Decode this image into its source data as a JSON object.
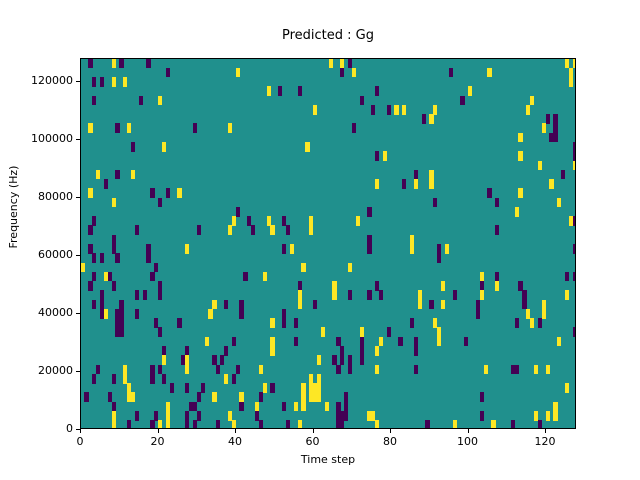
{
  "chart_data": {
    "type": "heatmap",
    "title": "Predicted : Gg",
    "xlabel": "Time step",
    "ylabel": "Frequency (Hz)",
    "x_range": [
      0,
      128
    ],
    "y_range": [
      0,
      128000
    ],
    "x_ticks": [
      0,
      20,
      40,
      60,
      80,
      100,
      120
    ],
    "y_ticks": [
      0,
      20000,
      40000,
      60000,
      80000,
      100000,
      120000
    ],
    "grid_cols": 128,
    "grid_rows": 40,
    "legend": "none",
    "colormap_name": "viridis",
    "colors": {
      "background": "#20908d",
      "low": "#440154",
      "high": "#fde725",
      "frame": "#000000"
    },
    "value_legend": "cells listed as [time_step, freq_row(0=bottom), v] with v 0=low(dark) 1=high(yellow); unlisted cells are mid(teal)",
    "cells": [
      [
        2,
        39,
        0
      ],
      [
        8,
        39,
        1
      ],
      [
        10,
        39,
        0
      ],
      [
        17,
        39,
        0
      ],
      [
        64,
        39,
        1
      ],
      [
        67,
        39,
        1
      ],
      [
        69,
        39,
        0
      ],
      [
        125,
        39,
        1
      ],
      [
        127,
        39,
        1
      ],
      [
        22,
        38,
        0
      ],
      [
        40,
        38,
        1
      ],
      [
        67,
        38,
        0
      ],
      [
        70,
        38,
        1
      ],
      [
        95,
        38,
        0
      ],
      [
        105,
        38,
        1
      ],
      [
        126,
        38,
        1
      ],
      [
        3,
        37,
        0
      ],
      [
        5,
        37,
        0
      ],
      [
        8,
        37,
        1
      ],
      [
        11,
        37,
        1
      ],
      [
        126,
        37,
        1
      ],
      [
        48,
        36,
        1
      ],
      [
        51,
        36,
        0
      ],
      [
        56,
        36,
        0
      ],
      [
        76,
        36,
        0
      ],
      [
        100,
        36,
        1
      ],
      [
        3,
        35,
        0
      ],
      [
        15,
        35,
        0
      ],
      [
        20,
        35,
        1
      ],
      [
        72,
        35,
        0
      ],
      [
        98,
        35,
        0
      ],
      [
        116,
        35,
        1
      ],
      [
        60,
        34,
        1
      ],
      [
        75,
        34,
        0
      ],
      [
        79,
        34,
        0
      ],
      [
        81,
        34,
        1
      ],
      [
        83,
        34,
        1
      ],
      [
        91,
        34,
        1
      ],
      [
        115,
        34,
        1
      ],
      [
        88,
        33,
        0
      ],
      [
        90,
        33,
        1
      ],
      [
        120,
        33,
        0
      ],
      [
        122,
        33,
        0
      ],
      [
        2,
        32,
        1
      ],
      [
        9,
        32,
        0
      ],
      [
        12,
        32,
        1
      ],
      [
        29,
        32,
        0
      ],
      [
        38,
        32,
        1
      ],
      [
        70,
        32,
        0
      ],
      [
        119,
        32,
        1
      ],
      [
        122,
        32,
        0
      ],
      [
        113,
        31,
        1
      ],
      [
        121,
        31,
        0
      ],
      [
        122,
        31,
        0
      ],
      [
        13,
        30,
        0
      ],
      [
        21,
        30,
        1
      ],
      [
        58,
        30,
        1
      ],
      [
        127,
        30,
        0
      ],
      [
        76,
        29,
        0
      ],
      [
        78,
        29,
        1
      ],
      [
        113,
        29,
        1
      ],
      [
        127,
        29,
        0
      ],
      [
        118,
        28,
        1
      ],
      [
        127,
        28,
        1
      ],
      [
        4,
        27,
        1
      ],
      [
        9,
        27,
        0
      ],
      [
        13,
        27,
        1
      ],
      [
        86,
        27,
        0
      ],
      [
        90,
        27,
        1
      ],
      [
        124,
        27,
        0
      ],
      [
        6,
        26,
        0
      ],
      [
        76,
        26,
        1
      ],
      [
        83,
        26,
        0
      ],
      [
        86,
        26,
        1
      ],
      [
        90,
        26,
        1
      ],
      [
        121,
        26,
        1
      ],
      [
        2,
        25,
        1
      ],
      [
        18,
        25,
        0
      ],
      [
        22,
        25,
        0
      ],
      [
        25,
        25,
        1
      ],
      [
        105,
        25,
        0
      ],
      [
        113,
        25,
        1
      ],
      [
        8,
        24,
        1
      ],
      [
        20,
        24,
        0
      ],
      [
        91,
        24,
        0
      ],
      [
        107,
        24,
        0
      ],
      [
        123,
        24,
        1
      ],
      [
        40,
        23,
        0
      ],
      [
        74,
        23,
        0
      ],
      [
        112,
        23,
        1
      ],
      [
        3,
        22,
        0
      ],
      [
        39,
        22,
        1
      ],
      [
        43,
        22,
        0
      ],
      [
        48,
        22,
        1
      ],
      [
        52,
        22,
        0
      ],
      [
        59,
        22,
        1
      ],
      [
        71,
        22,
        1
      ],
      [
        126,
        22,
        1
      ],
      [
        127,
        22,
        0
      ],
      [
        2,
        21,
        0
      ],
      [
        14,
        21,
        0
      ],
      [
        30,
        21,
        0
      ],
      [
        38,
        21,
        1
      ],
      [
        44,
        21,
        0
      ],
      [
        49,
        21,
        1
      ],
      [
        53,
        21,
        0
      ],
      [
        59,
        21,
        1
      ],
      [
        107,
        21,
        0
      ],
      [
        8,
        20,
        0
      ],
      [
        74,
        20,
        0
      ],
      [
        85,
        20,
        1
      ],
      [
        2,
        19,
        0
      ],
      [
        8,
        19,
        0
      ],
      [
        17,
        19,
        0
      ],
      [
        27,
        19,
        1
      ],
      [
        52,
        19,
        0
      ],
      [
        54,
        19,
        1
      ],
      [
        74,
        19,
        0
      ],
      [
        85,
        19,
        1
      ],
      [
        92,
        19,
        0
      ],
      [
        94,
        19,
        1
      ],
      [
        127,
        19,
        0
      ],
      [
        3,
        18,
        0
      ],
      [
        5,
        18,
        0
      ],
      [
        9,
        18,
        0
      ],
      [
        17,
        18,
        0
      ],
      [
        92,
        18,
        0
      ],
      [
        0,
        17,
        1
      ],
      [
        19,
        17,
        0
      ],
      [
        57,
        17,
        1
      ],
      [
        69,
        17,
        1
      ],
      [
        3,
        16,
        0
      ],
      [
        6,
        16,
        1
      ],
      [
        7,
        16,
        0
      ],
      [
        18,
        16,
        0
      ],
      [
        42,
        16,
        0
      ],
      [
        47,
        16,
        1
      ],
      [
        103,
        16,
        1
      ],
      [
        107,
        16,
        0
      ],
      [
        125,
        16,
        0
      ],
      [
        127,
        16,
        0
      ],
      [
        2,
        15,
        0
      ],
      [
        8,
        15,
        0
      ],
      [
        20,
        15,
        0
      ],
      [
        56,
        15,
        0
      ],
      [
        65,
        15,
        1
      ],
      [
        76,
        15,
        0
      ],
      [
        93,
        15,
        1
      ],
      [
        103,
        15,
        0
      ],
      [
        107,
        15,
        1
      ],
      [
        113,
        15,
        0
      ],
      [
        5,
        14,
        0
      ],
      [
        14,
        14,
        0
      ],
      [
        16,
        14,
        0
      ],
      [
        20,
        14,
        0
      ],
      [
        56,
        14,
        1
      ],
      [
        65,
        14,
        1
      ],
      [
        69,
        14,
        0
      ],
      [
        74,
        14,
        0
      ],
      [
        77,
        14,
        0
      ],
      [
        87,
        14,
        1
      ],
      [
        96,
        14,
        0
      ],
      [
        103,
        14,
        1
      ],
      [
        114,
        14,
        0
      ],
      [
        125,
        14,
        1
      ],
      [
        3,
        13,
        0
      ],
      [
        5,
        13,
        0
      ],
      [
        10,
        13,
        0
      ],
      [
        34,
        13,
        1
      ],
      [
        37,
        13,
        0
      ],
      [
        41,
        13,
        0
      ],
      [
        56,
        13,
        1
      ],
      [
        60,
        13,
        0
      ],
      [
        87,
        13,
        1
      ],
      [
        90,
        13,
        0
      ],
      [
        93,
        13,
        1
      ],
      [
        102,
        13,
        0
      ],
      [
        114,
        13,
        0
      ],
      [
        119,
        13,
        1
      ],
      [
        5,
        12,
        0
      ],
      [
        6,
        12,
        1
      ],
      [
        9,
        12,
        0
      ],
      [
        10,
        12,
        0
      ],
      [
        14,
        12,
        0
      ],
      [
        33,
        12,
        1
      ],
      [
        41,
        12,
        0
      ],
      [
        52,
        12,
        0
      ],
      [
        102,
        12,
        0
      ],
      [
        115,
        12,
        1
      ],
      [
        119,
        12,
        1
      ],
      [
        9,
        11,
        0
      ],
      [
        10,
        11,
        0
      ],
      [
        19,
        11,
        0
      ],
      [
        25,
        11,
        0
      ],
      [
        49,
        11,
        1
      ],
      [
        52,
        11,
        0
      ],
      [
        55,
        11,
        0
      ],
      [
        85,
        11,
        0
      ],
      [
        91,
        11,
        1
      ],
      [
        112,
        11,
        0
      ],
      [
        116,
        11,
        1
      ],
      [
        118,
        11,
        0
      ],
      [
        9,
        10,
        0
      ],
      [
        10,
        10,
        0
      ],
      [
        20,
        10,
        0
      ],
      [
        62,
        10,
        1
      ],
      [
        72,
        10,
        1
      ],
      [
        79,
        10,
        0
      ],
      [
        92,
        10,
        1
      ],
      [
        127,
        10,
        0
      ],
      [
        32,
        9,
        1
      ],
      [
        39,
        9,
        0
      ],
      [
        49,
        9,
        1
      ],
      [
        55,
        9,
        0
      ],
      [
        66,
        9,
        0
      ],
      [
        72,
        9,
        0
      ],
      [
        77,
        9,
        1
      ],
      [
        82,
        9,
        0
      ],
      [
        86,
        9,
        0
      ],
      [
        92,
        9,
        1
      ],
      [
        99,
        9,
        0
      ],
      [
        123,
        9,
        1
      ],
      [
        21,
        8,
        0
      ],
      [
        27,
        8,
        0
      ],
      [
        37,
        8,
        0
      ],
      [
        49,
        8,
        1
      ],
      [
        67,
        8,
        0
      ],
      [
        72,
        8,
        0
      ],
      [
        76,
        8,
        1
      ],
      [
        86,
        8,
        0
      ],
      [
        21,
        7,
        1
      ],
      [
        26,
        7,
        0
      ],
      [
        27,
        7,
        1
      ],
      [
        34,
        7,
        0
      ],
      [
        36,
        7,
        0
      ],
      [
        61,
        7,
        1
      ],
      [
        65,
        7,
        0
      ],
      [
        67,
        7,
        0
      ],
      [
        69,
        7,
        0
      ],
      [
        72,
        7,
        0
      ],
      [
        4,
        6,
        0
      ],
      [
        11,
        6,
        1
      ],
      [
        18,
        6,
        0
      ],
      [
        20,
        6,
        0
      ],
      [
        27,
        6,
        1
      ],
      [
        35,
        6,
        0
      ],
      [
        40,
        6,
        0
      ],
      [
        46,
        6,
        1
      ],
      [
        66,
        6,
        0
      ],
      [
        69,
        6,
        0
      ],
      [
        76,
        6,
        1
      ],
      [
        86,
        6,
        0
      ],
      [
        104,
        6,
        1
      ],
      [
        111,
        6,
        0
      ],
      [
        112,
        6,
        0
      ],
      [
        117,
        6,
        1
      ],
      [
        120,
        6,
        1
      ],
      [
        3,
        5,
        0
      ],
      [
        8,
        5,
        0
      ],
      [
        11,
        5,
        1
      ],
      [
        18,
        5,
        0
      ],
      [
        21,
        5,
        0
      ],
      [
        37,
        5,
        1
      ],
      [
        39,
        5,
        0
      ],
      [
        59,
        5,
        1
      ],
      [
        61,
        5,
        1
      ],
      [
        12,
        4,
        1
      ],
      [
        23,
        4,
        0
      ],
      [
        27,
        4,
        0
      ],
      [
        31,
        4,
        0
      ],
      [
        47,
        4,
        1
      ],
      [
        49,
        4,
        0
      ],
      [
        57,
        4,
        1
      ],
      [
        59,
        4,
        1
      ],
      [
        60,
        4,
        1
      ],
      [
        61,
        4,
        1
      ],
      [
        125,
        4,
        1
      ],
      [
        1,
        3,
        0
      ],
      [
        7,
        3,
        0
      ],
      [
        12,
        3,
        1
      ],
      [
        13,
        3,
        1
      ],
      [
        30,
        3,
        0
      ],
      [
        34,
        3,
        1
      ],
      [
        41,
        3,
        1
      ],
      [
        46,
        3,
        0
      ],
      [
        57,
        3,
        1
      ],
      [
        59,
        3,
        1
      ],
      [
        60,
        3,
        1
      ],
      [
        61,
        3,
        1
      ],
      [
        68,
        3,
        0
      ],
      [
        103,
        3,
        0
      ],
      [
        8,
        2,
        0
      ],
      [
        22,
        2,
        1
      ],
      [
        28,
        2,
        0
      ],
      [
        29,
        2,
        0
      ],
      [
        41,
        2,
        0
      ],
      [
        45,
        2,
        1
      ],
      [
        52,
        2,
        0
      ],
      [
        55,
        2,
        1
      ],
      [
        57,
        2,
        1
      ],
      [
        63,
        2,
        1
      ],
      [
        66,
        2,
        0
      ],
      [
        68,
        2,
        0
      ],
      [
        122,
        2,
        1
      ],
      [
        8,
        1,
        1
      ],
      [
        14,
        1,
        0
      ],
      [
        19,
        1,
        0
      ],
      [
        22,
        1,
        1
      ],
      [
        27,
        1,
        0
      ],
      [
        30,
        1,
        0
      ],
      [
        38,
        1,
        1
      ],
      [
        45,
        1,
        0
      ],
      [
        66,
        1,
        0
      ],
      [
        67,
        1,
        0
      ],
      [
        68,
        1,
        0
      ],
      [
        74,
        1,
        1
      ],
      [
        75,
        1,
        1
      ],
      [
        103,
        1,
        0
      ],
      [
        117,
        1,
        1
      ],
      [
        120,
        1,
        1
      ],
      [
        122,
        1,
        1
      ],
      [
        8,
        0,
        1
      ],
      [
        12,
        0,
        0
      ],
      [
        18,
        0,
        0
      ],
      [
        20,
        0,
        1
      ],
      [
        22,
        0,
        1
      ],
      [
        27,
        0,
        0
      ],
      [
        29,
        0,
        0
      ],
      [
        35,
        0,
        0
      ],
      [
        39,
        0,
        1
      ],
      [
        46,
        0,
        0
      ],
      [
        53,
        0,
        0
      ],
      [
        56,
        0,
        1
      ],
      [
        66,
        0,
        0
      ],
      [
        67,
        0,
        0
      ],
      [
        76,
        0,
        1
      ],
      [
        89,
        0,
        0
      ],
      [
        96,
        0,
        1
      ],
      [
        106,
        0,
        1
      ],
      [
        111,
        0,
        0
      ],
      [
        118,
        0,
        0
      ]
    ]
  }
}
